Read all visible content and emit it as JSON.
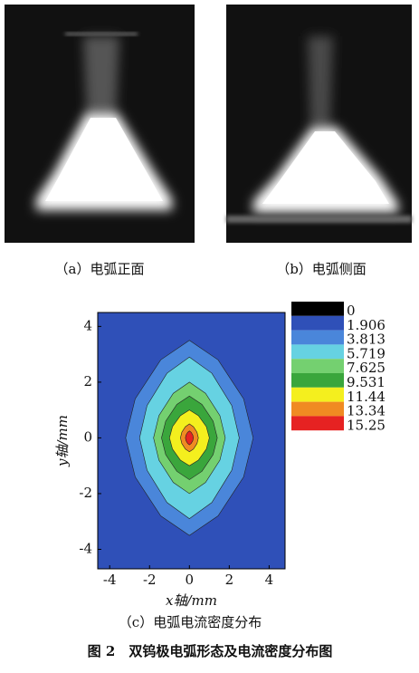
{
  "panels": {
    "a_caption": "（a）电弧正面",
    "b_caption": "（b）电弧侧面"
  },
  "chart_data": {
    "type": "contour",
    "caption": "（c）电弧电流密度分布",
    "x_label": "x轴/mm",
    "y_label": "y轴/mm",
    "xlim": [
      -4.6,
      4.8
    ],
    "ylim": [
      -4.7,
      4.5
    ],
    "xticks": [
      -4,
      -2,
      0,
      2,
      4
    ],
    "yticks": [
      -4,
      -2,
      0,
      2,
      4
    ],
    "colorbar": {
      "levels": [
        0,
        1.906,
        3.813,
        5.719,
        7.625,
        9.531,
        11.44,
        13.34,
        15.25
      ],
      "labels": [
        "0",
        "1.906",
        "3.813",
        "5.719",
        "7.625",
        "9.531",
        "11.44",
        "13.34",
        "15.25"
      ],
      "colors": [
        "#000000",
        "#2f50b8",
        "#4a86da",
        "#66d2e2",
        "#74d070",
        "#3aa63c",
        "#f4ef1e",
        "#f08a22",
        "#e62222"
      ]
    },
    "contours": [
      {
        "x_half": 3.2,
        "y_half": 3.5
      },
      {
        "x_half": 2.5,
        "y_half": 2.9
      },
      {
        "x_half": 1.8,
        "y_half": 2.0
      },
      {
        "x_half": 1.4,
        "y_half": 1.5
      },
      {
        "x_half": 1.0,
        "y_half": 1.0
      },
      {
        "x_half": 0.45,
        "y_half": 0.5
      },
      {
        "x_half": 0.2,
        "y_half": 0.25
      }
    ]
  },
  "figure_caption": "图 2　双钨极电弧形态及电流密度分布图"
}
